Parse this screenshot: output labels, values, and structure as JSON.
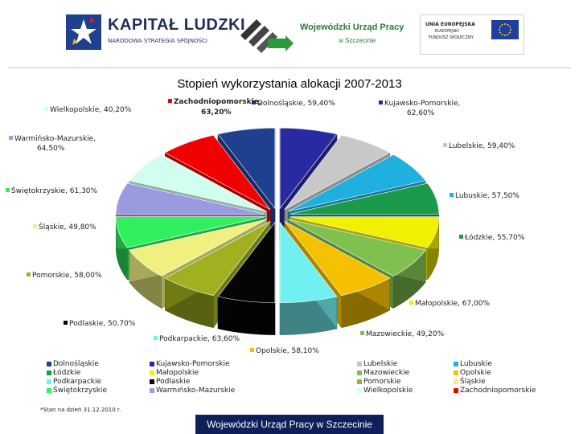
{
  "header": {
    "kl_title": "KAPITAŁ LUDZKI",
    "kl_subtitle": "NARODOWA STRATEGIA SPÓJNOŚCI",
    "wup_title": "Wojewódzki Urząd Pracy",
    "wup_city": "w Szczecinie",
    "ue_line1": "UNIA EUROPEJSKA",
    "ue_line2": "EUROPEJSKI",
    "ue_line3": "FUNDUSZ SPOŁECZNY"
  },
  "chart_data": {
    "type": "pie",
    "title": "Stopień wykorzystania alokacji 2007-2013",
    "legend_position": "bottom",
    "unit": "%",
    "slices": [
      {
        "name": "Dolnośląskie",
        "value": 59.4,
        "label": "Dolnośląskie, 59,40%",
        "color": "#1f3f8f"
      },
      {
        "name": "Kujawsko-Pomorskie",
        "value": 62.6,
        "label": "Kujawsko-Pomorskie, 62,60%",
        "color": "#2a2aa0"
      },
      {
        "name": "Lubelskie",
        "value": 59.4,
        "label": "Lubelskie, 59,40%",
        "color": "#c8c8c8"
      },
      {
        "name": "Lubuskie",
        "value": 57.5,
        "label": "Lubuskie, 57,50%",
        "color": "#1fb0e0"
      },
      {
        "name": "Łódzkie",
        "value": 55.7,
        "label": "Łódzkie, 55,70%",
        "color": "#1a9a4a"
      },
      {
        "name": "Małopolskie",
        "value": 67.0,
        "label": "Małopolskie, 67,00%",
        "color": "#f0f000"
      },
      {
        "name": "Mazowieckie",
        "value": 49.2,
        "label": "Mazowieckie, 49,20%",
        "color": "#80c050"
      },
      {
        "name": "Opolskie",
        "value": 58.1,
        "label": "Opolskie, 58,10%",
        "color": "#f5c000"
      },
      {
        "name": "Podkarpackie",
        "value": 63.6,
        "label": "Podkarpackie, 63,60%",
        "color": "#70f0f0"
      },
      {
        "name": "Podlaskie",
        "value": 50.7,
        "label": "Podlaskie, 50,70%",
        "color": "#050505"
      },
      {
        "name": "Pomorskie",
        "value": 58.0,
        "label": "Pomorskie, 58,00%",
        "color": "#a0b020"
      },
      {
        "name": "Śląskie",
        "value": 49.8,
        "label": "Śląskie, 49,80%",
        "color": "#f0f080"
      },
      {
        "name": "Świętokrzyskie",
        "value": 61.3,
        "label": "Świętokrzyskie, 61,30%",
        "color": "#30f060"
      },
      {
        "name": "Warmińsko-Mazurskie",
        "value": 64.5,
        "label": "Warmińsko-Mazurskie, 64,50%",
        "color": "#9a9ae0"
      },
      {
        "name": "Wielkopolskie",
        "value": 40.2,
        "label": "Wielkopolskie, 40,20%",
        "color": "#d0fff0"
      },
      {
        "name": "Zachodniopomorskie",
        "value": 63.2,
        "label_name": "Zachodniopomorskie,",
        "label_value": "63,20%",
        "color": "#f00000"
      }
    ]
  },
  "footnote": "*Stan na dzień 31.12.2010 r.",
  "footer_text": "Wojewódzki Urząd Pracy w Szczecinie"
}
